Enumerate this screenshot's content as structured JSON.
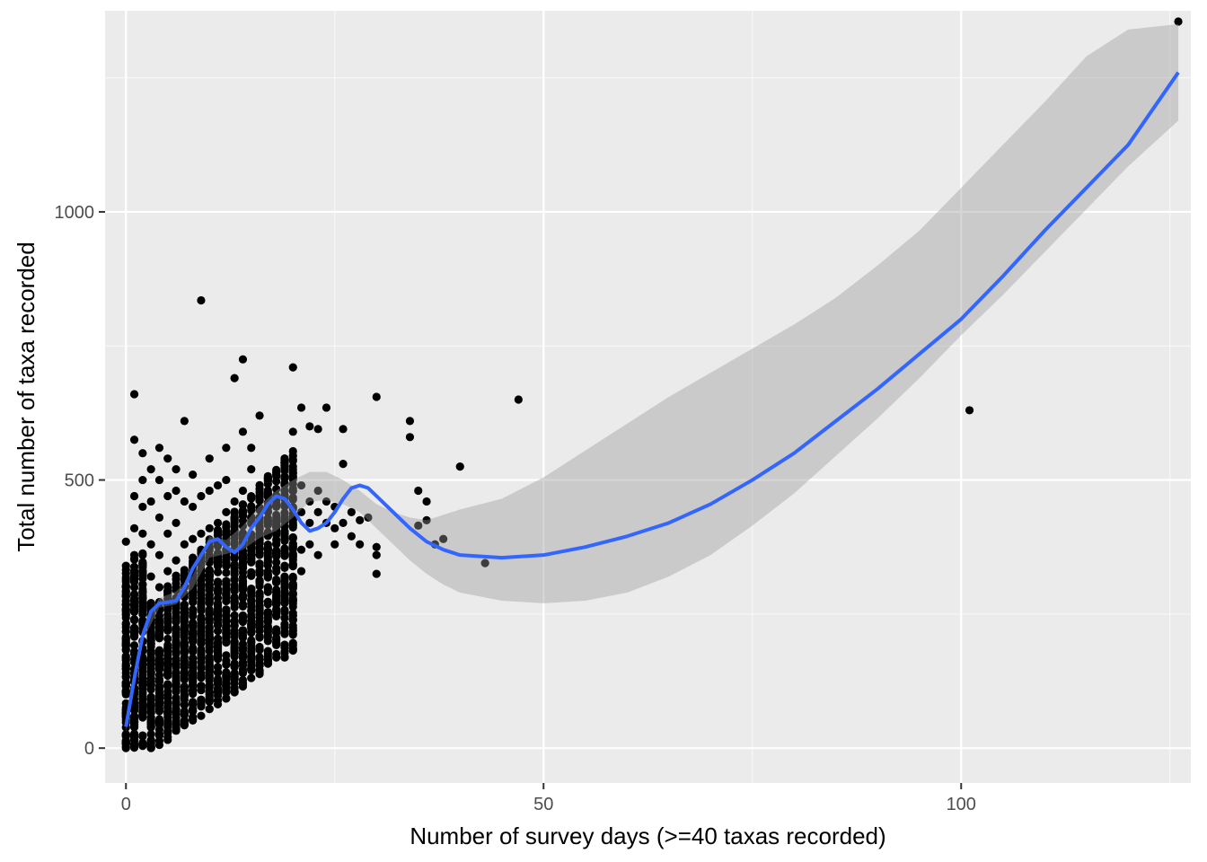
{
  "chart_data": {
    "type": "scatter",
    "xlabel": "Number of survey days (>=40 taxas recorded)",
    "ylabel": "Total number of taxa recorded",
    "xlim": [
      -2.5,
      127.5
    ],
    "ylim": [
      -65,
      1375
    ],
    "x_ticks": [
      0,
      50,
      100
    ],
    "x_tick_labels": [
      "0",
      "50",
      "100"
    ],
    "x_minor_ticks": [
      25,
      75,
      125
    ],
    "y_ticks": [
      0,
      500,
      1000
    ],
    "y_tick_labels": [
      "0",
      "500",
      "1000"
    ],
    "y_minor_ticks": [
      250,
      750,
      1250
    ],
    "grid": true,
    "legend": "none",
    "colors": {
      "panel_background": "#ebebeb",
      "grid_major": "#ffffff",
      "points": "#000000",
      "smooth_line": "#3366ff",
      "confidence_band": "#999999"
    },
    "dense_cluster": {
      "x_range": [
        0,
        20
      ],
      "y_range": [
        0,
        560
      ]
    },
    "points": [
      [
        0,
        0
      ],
      [
        0,
        10
      ],
      [
        0,
        25
      ],
      [
        0,
        60
      ],
      [
        0,
        120
      ],
      [
        0,
        200
      ],
      [
        0,
        260
      ],
      [
        0,
        300
      ],
      [
        0,
        340
      ],
      [
        0,
        385
      ],
      [
        1,
        15
      ],
      [
        1,
        50
      ],
      [
        1,
        100
      ],
      [
        1,
        180
      ],
      [
        1,
        240
      ],
      [
        1,
        300
      ],
      [
        1,
        360
      ],
      [
        1,
        410
      ],
      [
        1,
        470
      ],
      [
        1,
        575
      ],
      [
        1,
        660
      ],
      [
        2,
        10
      ],
      [
        2,
        60
      ],
      [
        2,
        130
      ],
      [
        2,
        200
      ],
      [
        2,
        280
      ],
      [
        2,
        330
      ],
      [
        2,
        400
      ],
      [
        2,
        450
      ],
      [
        2,
        500
      ],
      [
        2,
        550
      ],
      [
        3,
        40
      ],
      [
        3,
        120
      ],
      [
        3,
        180
      ],
      [
        3,
        250
      ],
      [
        3,
        320
      ],
      [
        3,
        380
      ],
      [
        3,
        460
      ],
      [
        3,
        520
      ],
      [
        4,
        80
      ],
      [
        4,
        150
      ],
      [
        4,
        220
      ],
      [
        4,
        300
      ],
      [
        4,
        360
      ],
      [
        4,
        430
      ],
      [
        4,
        500
      ],
      [
        4,
        560
      ],
      [
        5,
        100
      ],
      [
        5,
        180
      ],
      [
        5,
        260
      ],
      [
        5,
        330
      ],
      [
        5,
        400
      ],
      [
        5,
        470
      ],
      [
        5,
        540
      ],
      [
        6,
        120
      ],
      [
        6,
        200
      ],
      [
        6,
        280
      ],
      [
        6,
        350
      ],
      [
        6,
        420
      ],
      [
        6,
        480
      ],
      [
        6,
        520
      ],
      [
        7,
        130
      ],
      [
        7,
        220
      ],
      [
        7,
        300
      ],
      [
        7,
        380
      ],
      [
        7,
        460
      ],
      [
        7,
        610
      ],
      [
        8,
        150
      ],
      [
        8,
        230
      ],
      [
        8,
        310
      ],
      [
        8,
        390
      ],
      [
        8,
        450
      ],
      [
        8,
        510
      ],
      [
        9,
        160
      ],
      [
        9,
        240
      ],
      [
        9,
        320
      ],
      [
        9,
        400
      ],
      [
        9,
        470
      ],
      [
        9,
        835
      ],
      [
        10,
        170
      ],
      [
        10,
        250
      ],
      [
        10,
        330
      ],
      [
        10,
        410
      ],
      [
        10,
        480
      ],
      [
        10,
        540
      ],
      [
        11,
        180
      ],
      [
        11,
        270
      ],
      [
        11,
        350
      ],
      [
        11,
        420
      ],
      [
        11,
        490
      ],
      [
        12,
        200
      ],
      [
        12,
        290
      ],
      [
        12,
        370
      ],
      [
        12,
        440
      ],
      [
        12,
        500
      ],
      [
        12,
        560
      ],
      [
        13,
        210
      ],
      [
        13,
        300
      ],
      [
        13,
        380
      ],
      [
        13,
        460
      ],
      [
        13,
        690
      ],
      [
        14,
        220
      ],
      [
        14,
        310
      ],
      [
        14,
        400
      ],
      [
        14,
        480
      ],
      [
        14,
        725
      ],
      [
        14,
        590
      ],
      [
        15,
        215
      ],
      [
        15,
        290
      ],
      [
        15,
        360
      ],
      [
        15,
        430
      ],
      [
        15,
        520
      ],
      [
        15,
        560
      ],
      [
        16,
        250
      ],
      [
        16,
        330
      ],
      [
        16,
        400
      ],
      [
        16,
        470
      ],
      [
        16,
        620
      ],
      [
        17,
        220
      ],
      [
        17,
        300
      ],
      [
        17,
        370
      ],
      [
        17,
        440
      ],
      [
        18,
        220
      ],
      [
        18,
        310
      ],
      [
        18,
        380
      ],
      [
        18,
        450
      ],
      [
        18,
        510
      ],
      [
        19,
        280
      ],
      [
        19,
        340
      ],
      [
        19,
        400
      ],
      [
        19,
        480
      ],
      [
        20,
        300
      ],
      [
        20,
        360
      ],
      [
        20,
        420
      ],
      [
        20,
        480
      ],
      [
        20,
        710
      ],
      [
        20,
        590
      ],
      [
        21,
        330
      ],
      [
        21,
        370
      ],
      [
        21,
        440
      ],
      [
        21,
        490
      ],
      [
        21,
        635
      ],
      [
        22,
        380
      ],
      [
        22,
        420
      ],
      [
        22,
        460
      ],
      [
        22,
        600
      ],
      [
        23,
        360
      ],
      [
        23,
        440
      ],
      [
        23,
        480
      ],
      [
        23,
        595
      ],
      [
        24,
        420
      ],
      [
        24,
        460
      ],
      [
        24,
        635
      ],
      [
        25,
        380
      ],
      [
        25,
        410
      ],
      [
        25,
        450
      ],
      [
        26,
        420
      ],
      [
        26,
        530
      ],
      [
        26,
        595
      ],
      [
        27,
        395
      ],
      [
        27,
        440
      ],
      [
        28,
        380
      ],
      [
        28,
        425
      ],
      [
        29,
        430
      ],
      [
        30,
        325
      ],
      [
        30,
        360
      ],
      [
        30,
        375
      ],
      [
        30,
        655
      ],
      [
        34,
        580
      ],
      [
        34,
        610
      ],
      [
        35,
        415
      ],
      [
        35,
        480
      ],
      [
        36,
        425
      ],
      [
        36,
        460
      ],
      [
        37,
        380
      ],
      [
        38,
        390
      ],
      [
        40,
        525
      ],
      [
        43,
        345
      ],
      [
        47,
        650
      ],
      [
        101,
        630
      ],
      [
        126,
        1355
      ]
    ],
    "smooth_line": {
      "x": [
        0,
        1,
        2,
        3,
        4,
        5,
        6,
        7,
        8,
        9,
        10,
        11,
        12,
        13,
        14,
        15,
        16,
        17,
        18,
        19,
        20,
        21,
        22,
        23,
        24,
        25,
        26,
        27,
        28,
        29,
        30,
        32,
        34,
        36,
        38,
        40,
        45,
        50,
        55,
        60,
        65,
        70,
        75,
        80,
        85,
        90,
        95,
        100,
        105,
        110,
        115,
        120,
        126
      ],
      "y": [
        40,
        130,
        210,
        255,
        270,
        272,
        275,
        300,
        335,
        360,
        385,
        390,
        375,
        365,
        380,
        410,
        430,
        455,
        470,
        465,
        445,
        420,
        405,
        410,
        420,
        440,
        465,
        485,
        490,
        485,
        470,
        440,
        410,
        385,
        370,
        360,
        355,
        360,
        375,
        395,
        420,
        455,
        500,
        550,
        610,
        670,
        735,
        800,
        880,
        965,
        1045,
        1125,
        1260
      ]
    },
    "confidence_band": {
      "x": [
        0,
        2,
        4,
        6,
        8,
        10,
        12,
        14,
        16,
        18,
        20,
        22,
        24,
        26,
        28,
        30,
        32,
        34,
        36,
        38,
        40,
        45,
        50,
        55,
        60,
        65,
        70,
        75,
        80,
        85,
        90,
        95,
        100,
        105,
        110,
        115,
        120,
        126
      ],
      "lower": [
        30,
        200,
        262,
        268,
        298,
        355,
        362,
        370,
        392,
        405,
        430,
        460,
        462,
        455,
        440,
        410,
        380,
        350,
        325,
        305,
        290,
        275,
        270,
        275,
        290,
        320,
        360,
        415,
        475,
        545,
        615,
        690,
        770,
        845,
        925,
        1005,
        1085,
        1170
      ],
      "upper": [
        50,
        222,
        280,
        292,
        322,
        395,
        388,
        415,
        452,
        480,
        500,
        515,
        515,
        500,
        480,
        455,
        440,
        430,
        425,
        435,
        445,
        465,
        505,
        555,
        605,
        655,
        700,
        745,
        790,
        840,
        900,
        965,
        1045,
        1125,
        1205,
        1290,
        1340,
        1350
      ]
    }
  }
}
